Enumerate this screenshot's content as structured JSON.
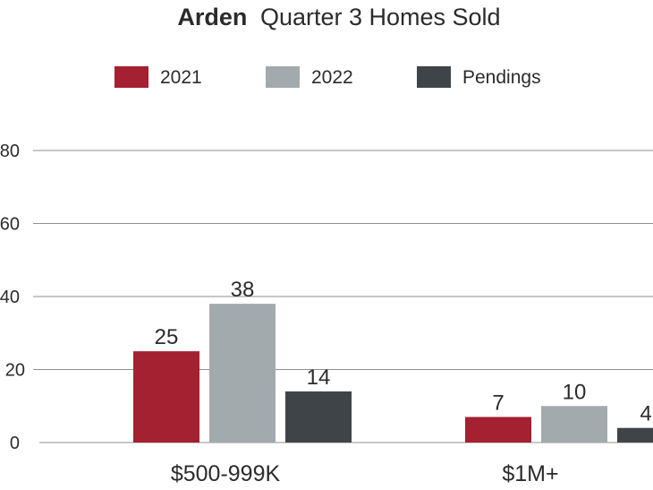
{
  "chart_data": {
    "type": "bar",
    "title_bold": "Arden",
    "title_rest": "Quarter 3 Homes Sold",
    "categories": [
      "$500-999K",
      "$1M+"
    ],
    "series": [
      {
        "name": "2021",
        "values": [
          25,
          7
        ],
        "color": "#a32130"
      },
      {
        "name": "2022",
        "values": [
          38,
          10
        ],
        "color": "#a3aaae"
      },
      {
        "name": "Pendings",
        "values": [
          14,
          4
        ],
        "color": "#3f4448"
      }
    ],
    "y_ticks": [
      "0",
      "20",
      "40",
      "60",
      "80"
    ],
    "ylim": [
      0,
      80
    ],
    "grid": true,
    "legend_position": "top-center"
  }
}
